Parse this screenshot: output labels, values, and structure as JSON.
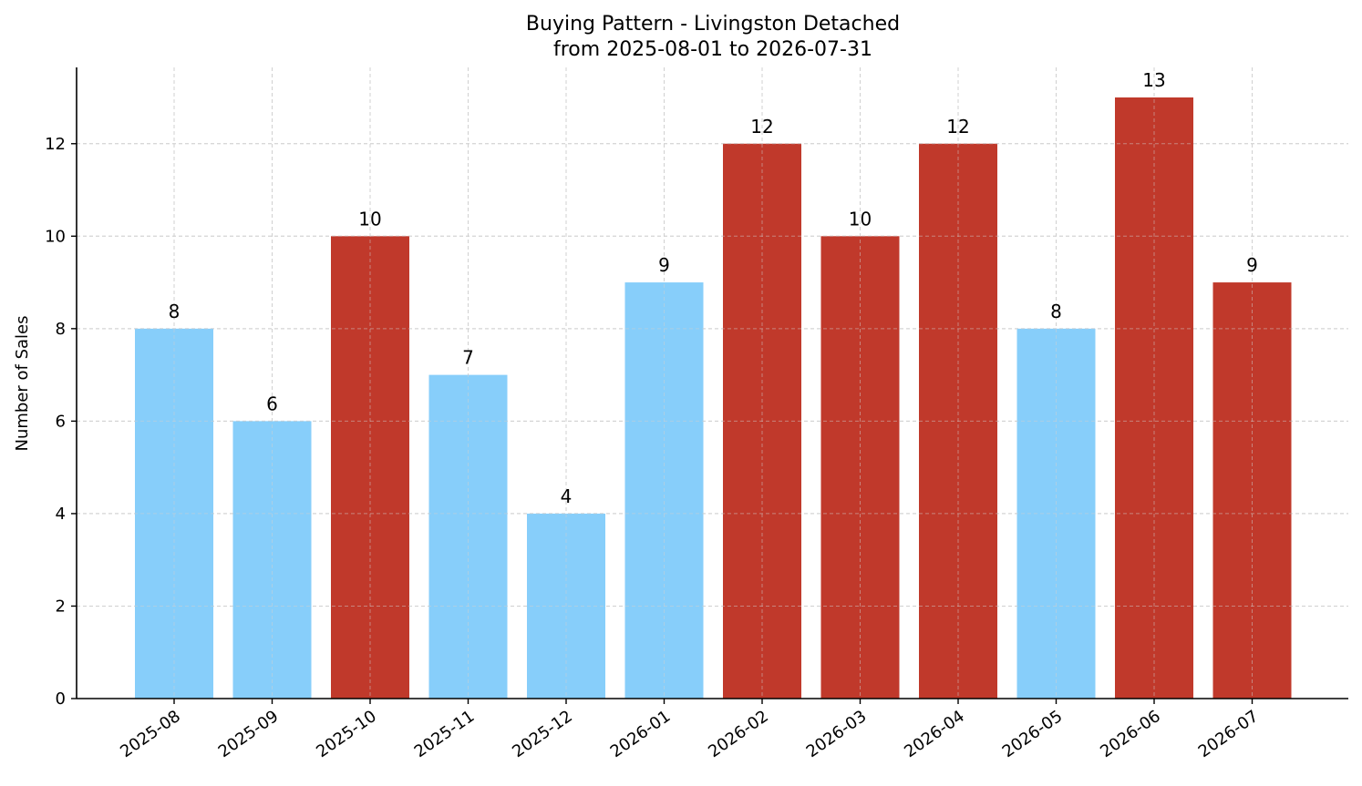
{
  "chart_data": {
    "type": "bar",
    "title_line1": "Buying Pattern - Livingston Detached",
    "title_line2": "from 2025-08-01 to 2026-07-31",
    "xlabel": "",
    "ylabel": "Number of Sales",
    "categories": [
      "2025-08",
      "2025-09",
      "2025-10",
      "2025-11",
      "2025-12",
      "2026-01",
      "2026-02",
      "2026-03",
      "2026-04",
      "2026-05",
      "2026-06",
      "2026-07"
    ],
    "values": [
      8,
      6,
      10,
      7,
      4,
      9,
      12,
      10,
      12,
      8,
      13,
      9
    ],
    "bar_colors": [
      "#87CEFA",
      "#87CEFA",
      "#C0392B",
      "#87CEFA",
      "#87CEFA",
      "#87CEFA",
      "#C0392B",
      "#C0392B",
      "#C0392B",
      "#87CEFA",
      "#C0392B",
      "#C0392B"
    ],
    "ylim": [
      0,
      13.65
    ],
    "yticks": [
      0,
      2,
      4,
      6,
      8,
      10,
      12
    ],
    "grid": true,
    "legend": "none"
  }
}
